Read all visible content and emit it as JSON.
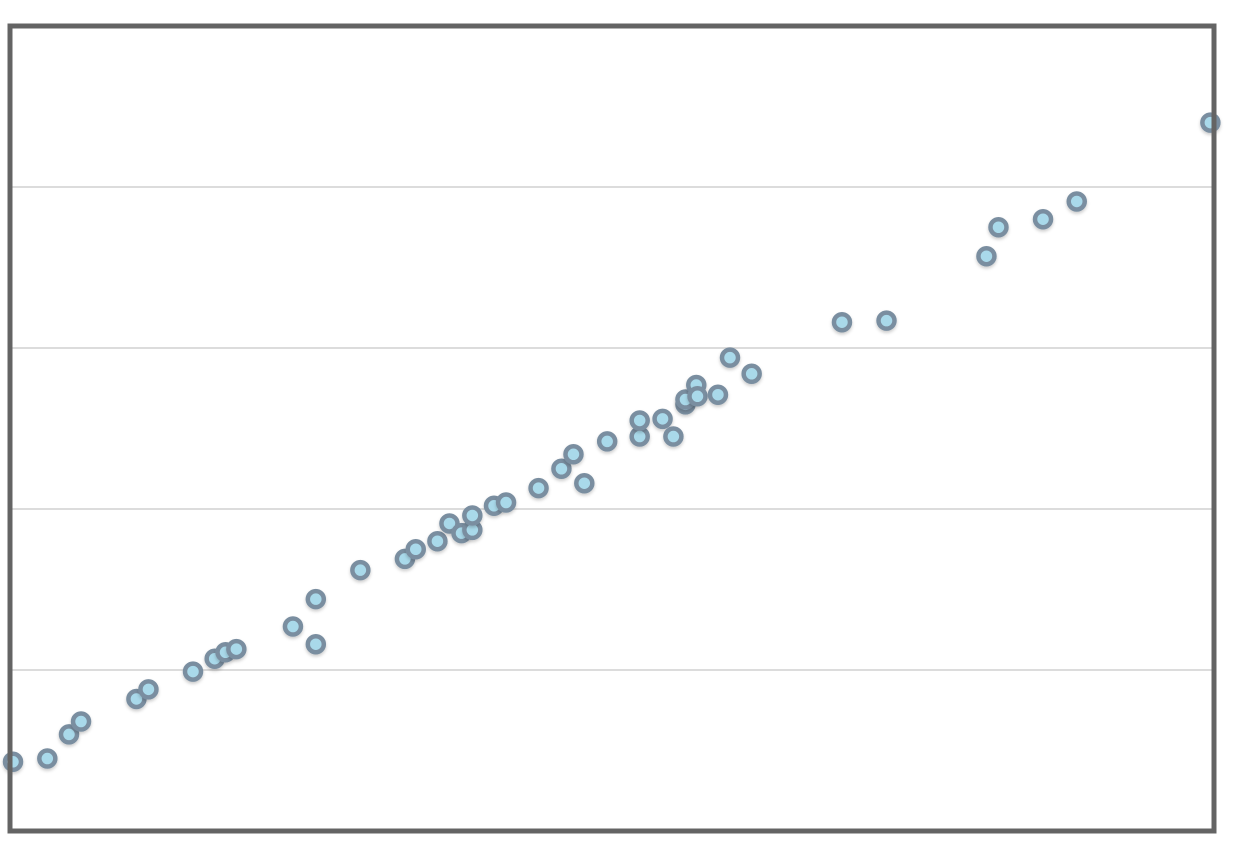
{
  "chart_data": {
    "type": "scatter",
    "x": [
      0.25,
      3.1,
      4.9,
      5.9,
      10.5,
      11.5,
      15.2,
      17.0,
      17.9,
      18.8,
      23.5,
      25.4,
      25.4,
      29.1,
      32.8,
      33.7,
      35.5,
      36.5,
      37.5,
      38.4,
      38.4,
      40.2,
      41.2,
      43.9,
      45.8,
      46.8,
      47.7,
      49.6,
      52.3,
      52.3,
      54.2,
      55.1,
      56.1,
      56.1,
      57.0,
      57.1,
      58.8,
      59.8,
      61.6,
      69.1,
      72.8,
      81.1,
      82.1,
      85.8,
      88.6,
      99.7
    ],
    "values": [
      0.43,
      0.45,
      0.6,
      0.68,
      0.82,
      0.88,
      0.99,
      1.07,
      1.11,
      1.13,
      1.27,
      1.44,
      1.16,
      1.62,
      1.69,
      1.75,
      1.8,
      1.91,
      1.85,
      1.87,
      1.96,
      2.02,
      2.04,
      2.13,
      2.25,
      2.34,
      2.16,
      2.42,
      2.45,
      2.55,
      2.56,
      2.45,
      2.65,
      2.68,
      2.77,
      2.7,
      2.71,
      2.94,
      2.84,
      3.16,
      3.17,
      3.57,
      3.75,
      3.8,
      3.91,
      4.4
    ],
    "xlim": [
      0,
      100
    ],
    "ylim": [
      0,
      5
    ],
    "yticks": [
      1,
      2,
      3,
      4
    ],
    "grid": true,
    "color": "#a9d9ea",
    "edge_color": "#7a8ea0"
  }
}
